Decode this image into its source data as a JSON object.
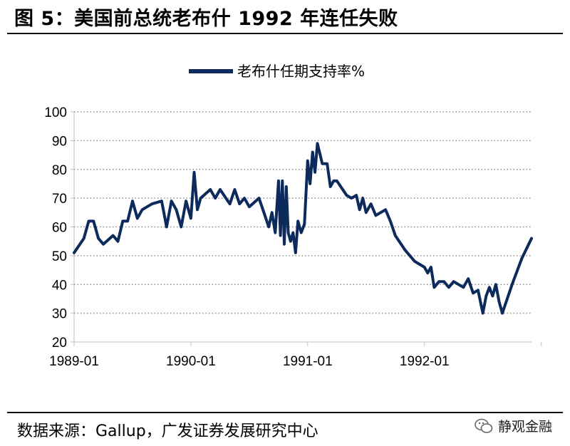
{
  "figure": {
    "title": "图 5：美国前总统老布什 1992 年连任失败",
    "source": "数据来源：Gallup，广发证券发展研究中心",
    "brand": "静观金融"
  },
  "colors": {
    "series": "#0d2a5c",
    "grid": "#8c8c8c",
    "axis": "#bfbfbf"
  },
  "chart_data": {
    "type": "line",
    "title": "",
    "xlabel": "",
    "ylabel": "",
    "ylim": [
      20,
      100
    ],
    "yticks": [
      20,
      30,
      40,
      50,
      60,
      70,
      80,
      90,
      100
    ],
    "xticks": [
      "1989-01",
      "1990-01",
      "1991-01",
      "1992-01"
    ],
    "xlim": [
      "1989-01",
      "1992-12"
    ],
    "grid": "horizontal dotted",
    "legend": "top-center",
    "series": [
      {
        "name": "老布什任期支持率%",
        "points": [
          [
            "1989-01",
            51
          ],
          [
            "1989-02",
            56
          ],
          [
            "1989-02",
            62
          ],
          [
            "1989-03",
            62
          ],
          [
            "1989-03",
            56
          ],
          [
            "1989-04",
            54
          ],
          [
            "1989-05",
            57
          ],
          [
            "1989-05",
            55
          ],
          [
            "1989-06",
            62
          ],
          [
            "1989-06",
            62
          ],
          [
            "1989-07",
            69
          ],
          [
            "1989-07",
            63
          ],
          [
            "1989-08",
            66
          ],
          [
            "1989-09",
            68
          ],
          [
            "1989-10",
            69
          ],
          [
            "1989-10",
            60
          ],
          [
            "1989-11",
            69
          ],
          [
            "1989-11",
            66
          ],
          [
            "1989-12",
            60
          ],
          [
            "1989-12",
            69
          ],
          [
            "1990-01",
            63
          ],
          [
            "1990-01",
            79
          ],
          [
            "1990-01",
            66
          ],
          [
            "1990-02",
            70
          ],
          [
            "1990-03",
            73
          ],
          [
            "1990-03",
            70
          ],
          [
            "1990-04",
            73
          ],
          [
            "1990-05",
            68
          ],
          [
            "1990-05",
            73
          ],
          [
            "1990-06",
            68
          ],
          [
            "1990-06",
            70
          ],
          [
            "1990-07",
            67
          ],
          [
            "1990-08",
            70
          ],
          [
            "1990-08",
            65
          ],
          [
            "1990-09",
            60
          ],
          [
            "1990-09",
            65
          ],
          [
            "1990-09",
            58
          ],
          [
            "1990-10",
            76
          ],
          [
            "1990-10",
            57
          ],
          [
            "1990-10",
            76
          ],
          [
            "1990-10",
            54
          ],
          [
            "1990-10",
            74
          ],
          [
            "1990-11",
            58
          ],
          [
            "1990-11",
            55
          ],
          [
            "1990-11",
            58
          ],
          [
            "1990-11",
            51
          ],
          [
            "1990-12",
            62
          ],
          [
            "1990-12",
            58
          ],
          [
            "1990-12",
            61
          ],
          [
            "1991-01",
            83
          ],
          [
            "1991-01",
            75
          ],
          [
            "1991-01",
            86
          ],
          [
            "1991-01",
            79
          ],
          [
            "1991-02",
            89
          ],
          [
            "1991-02",
            82
          ],
          [
            "1991-03",
            82
          ],
          [
            "1991-03",
            74
          ],
          [
            "1991-03",
            76
          ],
          [
            "1991-04",
            76
          ],
          [
            "1991-05",
            71
          ],
          [
            "1991-05",
            70
          ],
          [
            "1991-06",
            71
          ],
          [
            "1991-06",
            66
          ],
          [
            "1991-06",
            70
          ],
          [
            "1991-07",
            65
          ],
          [
            "1991-07",
            68
          ],
          [
            "1991-08",
            64
          ],
          [
            "1991-09",
            66
          ],
          [
            "1991-09",
            62
          ],
          [
            "1991-10",
            57
          ],
          [
            "1991-11",
            52
          ],
          [
            "1991-12",
            48
          ],
          [
            "1992-01",
            46
          ],
          [
            "1992-01",
            44
          ],
          [
            "1992-01",
            46
          ],
          [
            "1992-02",
            39
          ],
          [
            "1992-02",
            41
          ],
          [
            "1992-03",
            41
          ],
          [
            "1992-03",
            39
          ],
          [
            "1992-04",
            41
          ],
          [
            "1992-05",
            39
          ],
          [
            "1992-05",
            42
          ],
          [
            "1992-06",
            37
          ],
          [
            "1992-06",
            38
          ],
          [
            "1992-07",
            30
          ],
          [
            "1992-07",
            36
          ],
          [
            "1992-07",
            39
          ],
          [
            "1992-08",
            36
          ],
          [
            "1992-08",
            40
          ],
          [
            "1992-08",
            34
          ],
          [
            "1992-09",
            30
          ],
          [
            "1992-09",
            35
          ],
          [
            "1992-10",
            40
          ],
          [
            "1992-11",
            49
          ],
          [
            "1992-12",
            56
          ]
        ]
      }
    ]
  }
}
